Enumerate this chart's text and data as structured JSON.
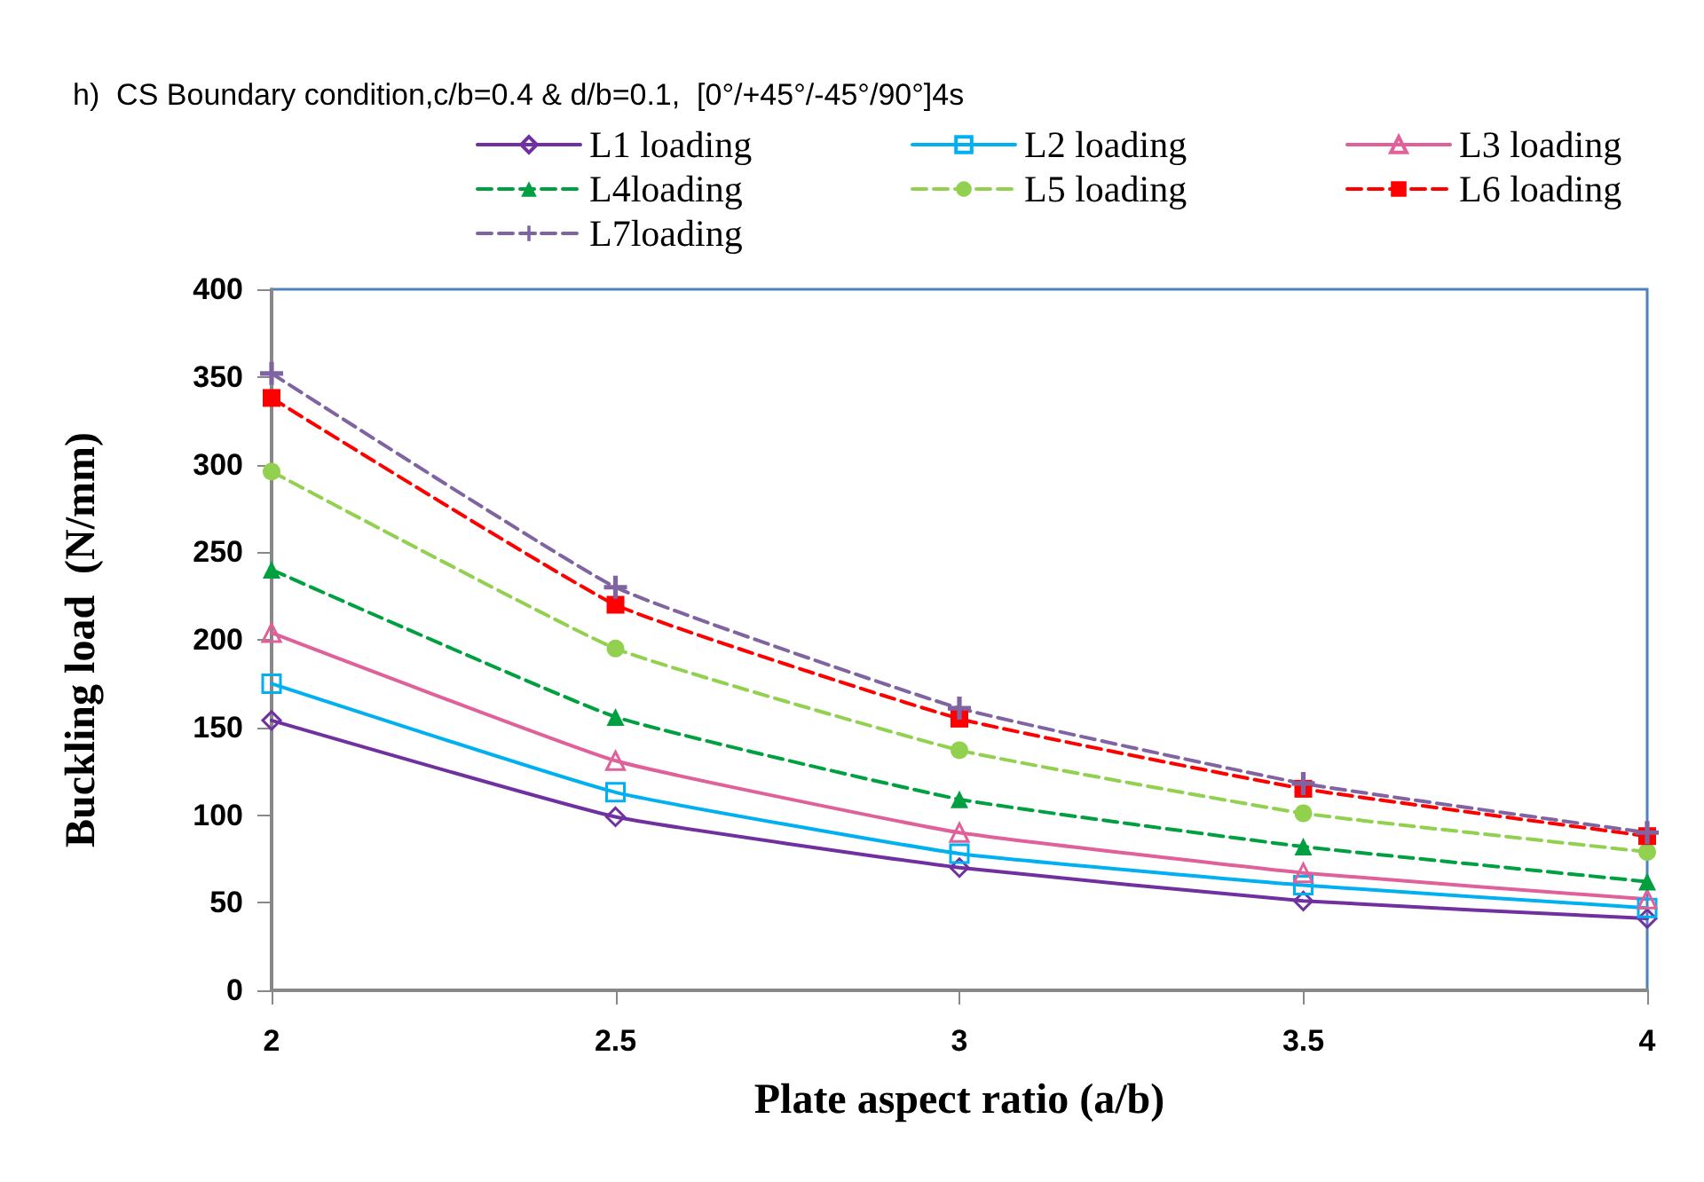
{
  "chart_data": {
    "type": "line",
    "title": "h)  CS Boundary condition,c/b=0.4 & d/b=0.1,  [0°/+45°/-45°/90°]4s",
    "xlabel": "Plate aspect ratio (a/b)",
    "ylabel": "Buckling load  (N/mm)",
    "x": [
      2,
      2.5,
      3,
      3.5,
      4
    ],
    "xlim": [
      2,
      4
    ],
    "xticks": [
      2,
      2.5,
      3,
      3.5,
      4
    ],
    "ylim": [
      0,
      400
    ],
    "yticks": [
      0,
      50,
      100,
      150,
      200,
      250,
      300,
      350,
      400
    ],
    "grid": false,
    "legend": "top",
    "series": [
      {
        "name": "L1 loading",
        "color": "#7030a0",
        "marker": "diamond",
        "line_style": "solid",
        "values": [
          154,
          99,
          70,
          51,
          41
        ]
      },
      {
        "name": "L2 loading",
        "color": "#00b0f0",
        "marker": "square",
        "line_style": "solid",
        "values": [
          175,
          113,
          78,
          60,
          47
        ]
      },
      {
        "name": "L3 loading",
        "color": "#e0609a",
        "marker": "triangle",
        "line_style": "solid",
        "values": [
          204,
          131,
          90,
          67,
          52
        ]
      },
      {
        "name": "L4loading",
        "color": "#00a040",
        "marker": "triangle",
        "line_style": "dashed",
        "values": [
          240,
          156,
          109,
          82,
          62
        ]
      },
      {
        "name": "L5 loading",
        "color": "#92d050",
        "marker": "circle",
        "line_style": "dashed",
        "values": [
          296,
          195,
          137,
          101,
          79
        ]
      },
      {
        "name": "L6 loading",
        "color": "#ff0000",
        "marker": "square",
        "line_style": "dashed",
        "values": [
          338,
          220,
          155,
          115,
          88
        ]
      },
      {
        "name": "L7loading",
        "color": "#8064a2",
        "marker": "cross",
        "line_style": "dashed",
        "values": [
          352,
          230,
          161,
          118,
          90
        ]
      }
    ]
  }
}
